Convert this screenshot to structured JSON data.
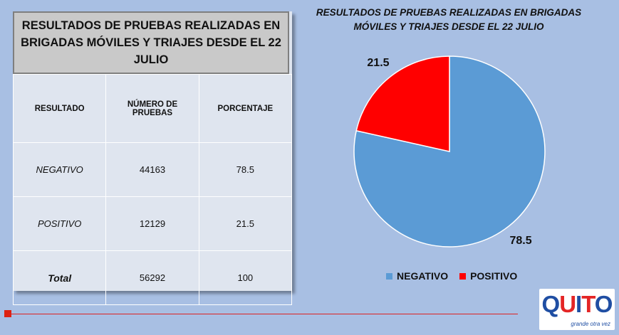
{
  "table": {
    "title": "RESULTADOS DE PRUEBAS REALIZADAS EN BRIGADAS MÓVILES Y TRIAJES DESDE EL 22 JULIO",
    "headers": [
      "RESULTADO",
      "NÚMERO DE PRUEBAS",
      "PORCENTAJE"
    ],
    "rows": [
      {
        "label": "NEGATIVO",
        "count": "44163",
        "percent": "78.5"
      },
      {
        "label": "POSITIVO",
        "count": "12129",
        "percent": "21.5"
      },
      {
        "label": "Total",
        "count": "56292",
        "percent": "100"
      }
    ]
  },
  "chart_data": {
    "type": "pie",
    "title": "RESULTADOS DE PRUEBAS REALIZADAS EN BRIGADAS MÓVILES Y TRIAJES DESDE EL 22 JULIO",
    "categories": [
      "NEGATIVO",
      "POSITIVO"
    ],
    "values": [
      78.5,
      21.5
    ],
    "colors": [
      "#5b9bd5",
      "#ff0000"
    ],
    "legend": "bottom"
  },
  "footer": {
    "logo_text": "QUITO",
    "logo_tagline": "grande otra vez",
    "accent_color": "#dd2222"
  }
}
